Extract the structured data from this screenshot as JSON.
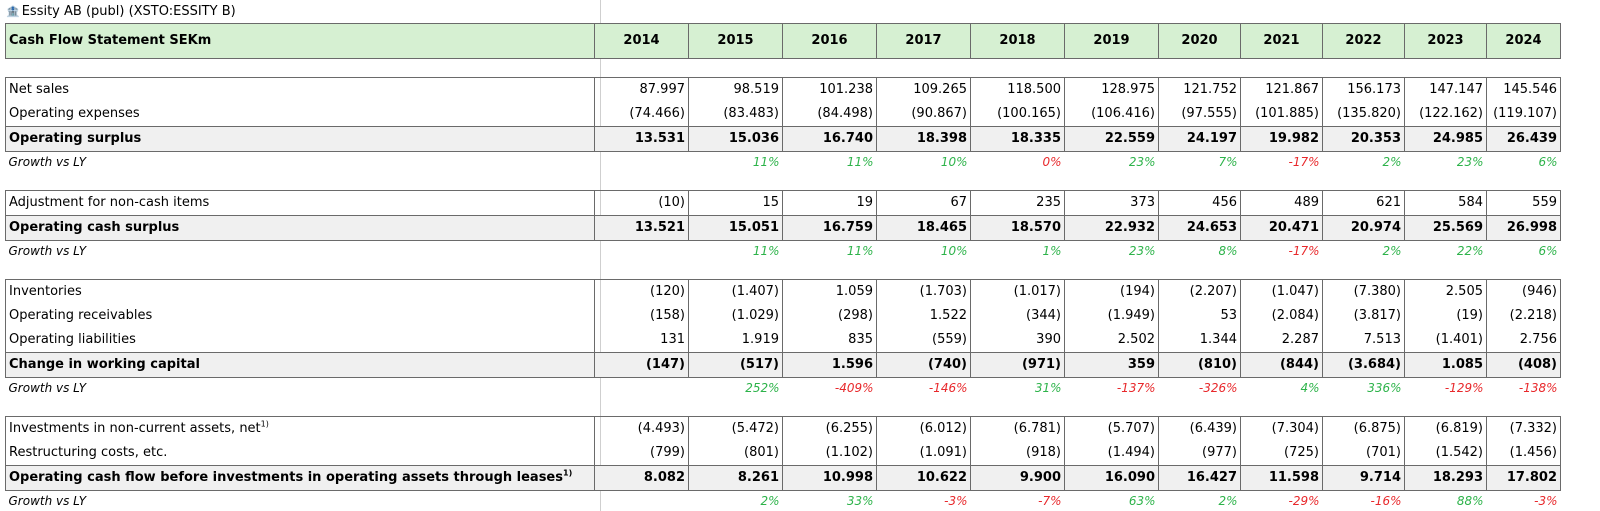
{
  "title": "Essity AB (publ) (XSTO:ESSITY B)",
  "header": {
    "label": "Cash Flow Statement SEKm",
    "years": [
      "2014",
      "2015",
      "2016",
      "2017",
      "2018",
      "2019",
      "2020",
      "2021",
      "2022",
      "2023",
      "2024"
    ]
  },
  "sections": [
    {
      "rows": [
        {
          "label": "Net sales",
          "type": "data",
          "values": [
            "87.997",
            "98.519",
            "101.238",
            "109.265",
            "118.500",
            "128.975",
            "121.752",
            "121.867",
            "156.173",
            "147.147",
            "145.546"
          ]
        },
        {
          "label": "Operating expenses",
          "type": "data",
          "values": [
            "(74.466)",
            "(83.483)",
            "(84.498)",
            "(90.867)",
            "(100.165)",
            "(106.416)",
            "(97.555)",
            "(101.885)",
            "(135.820)",
            "(122.162)",
            "(119.107)"
          ]
        },
        {
          "label": "Operating surplus",
          "type": "total",
          "values": [
            "13.531",
            "15.036",
            "16.740",
            "18.398",
            "18.335",
            "22.559",
            "24.197",
            "19.982",
            "20.353",
            "24.985",
            "26.439"
          ]
        }
      ],
      "growth": {
        "label": "Growth vs LY",
        "values": [
          "",
          "11%",
          "11%",
          "10%",
          "0%",
          "23%",
          "7%",
          "-17%",
          "2%",
          "23%",
          "6%"
        ],
        "colors": [
          "",
          "pos",
          "pos",
          "pos",
          "neg",
          "pos",
          "pos",
          "neg",
          "pos",
          "pos",
          "pos"
        ]
      }
    },
    {
      "rows": [
        {
          "label": "Adjustment for non-cash items",
          "type": "data",
          "values": [
            "(10)",
            "15",
            "19",
            "67",
            "235",
            "373",
            "456",
            "489",
            "621",
            "584",
            "559"
          ]
        },
        {
          "label": "Operating cash surplus",
          "type": "total",
          "values": [
            "13.521",
            "15.051",
            "16.759",
            "18.465",
            "18.570",
            "22.932",
            "24.653",
            "20.471",
            "20.974",
            "25.569",
            "26.998"
          ]
        }
      ],
      "growth": {
        "label": "Growth vs LY",
        "values": [
          "",
          "11%",
          "11%",
          "10%",
          "1%",
          "23%",
          "8%",
          "-17%",
          "2%",
          "22%",
          "6%"
        ],
        "colors": [
          "",
          "pos",
          "pos",
          "pos",
          "pos",
          "pos",
          "pos",
          "neg",
          "pos",
          "pos",
          "pos"
        ]
      }
    },
    {
      "rows": [
        {
          "label": " Inventories",
          "type": "data",
          "values": [
            "(120)",
            "(1.407)",
            "1.059",
            "(1.703)",
            "(1.017)",
            "(194)",
            "(2.207)",
            "(1.047)",
            "(7.380)",
            "2.505",
            "(946)"
          ]
        },
        {
          "label": "Operating receivables",
          "type": "data",
          "values": [
            "(158)",
            "(1.029)",
            "(298)",
            "1.522",
            "(344)",
            "(1.949)",
            "53",
            "(2.084)",
            "(3.817)",
            "(19)",
            "(2.218)"
          ]
        },
        {
          "label": "Operating liabilities",
          "type": "data",
          "values": [
            "131",
            "1.919",
            "835",
            "(559)",
            "390",
            "2.502",
            "1.344",
            "2.287",
            "7.513",
            "(1.401)",
            "2.756"
          ]
        },
        {
          "label": "Change in working capital",
          "type": "total",
          "values": [
            "(147)",
            "(517)",
            "1.596",
            "(740)",
            "(971)",
            "359",
            "(810)",
            "(844)",
            "(3.684)",
            "1.085",
            "(408)"
          ]
        }
      ],
      "growth": {
        "label": "Growth vs LY",
        "values": [
          "",
          "252%",
          "-409%",
          "-146%",
          "31%",
          "-137%",
          "-326%",
          "4%",
          "336%",
          "-129%",
          "-138%"
        ],
        "colors": [
          "",
          "pos",
          "neg",
          "neg",
          "pos",
          "neg",
          "neg",
          "pos",
          "pos",
          "neg",
          "neg"
        ]
      }
    },
    {
      "rows": [
        {
          "label": "Investments in non-current assets, net",
          "sup": "1)",
          "type": "data",
          "values": [
            "(4.493)",
            "(5.472)",
            "(6.255)",
            "(6.012)",
            "(6.781)",
            "(5.707)",
            "(6.439)",
            "(7.304)",
            "(6.875)",
            "(6.819)",
            "(7.332)"
          ]
        },
        {
          "label": "Restructuring costs, etc.",
          "type": "data",
          "values": [
            "(799)",
            "(801)",
            "(1.102)",
            "(1.091)",
            "(918)",
            "(1.494)",
            "(977)",
            "(725)",
            "(701)",
            "(1.542)",
            "(1.456)"
          ]
        },
        {
          "label": "Operating cash flow before investments in operating assets through leases",
          "sup": "1)",
          "type": "total",
          "values": [
            "8.082",
            "8.261",
            "10.998",
            "10.622",
            "9.900",
            "16.090",
            "16.427",
            "11.598",
            "9.714",
            "18.293",
            "17.802"
          ]
        }
      ],
      "growth": {
        "label": "Growth vs LY",
        "values": [
          "",
          "2%",
          "33%",
          "-3%",
          "-7%",
          "63%",
          "2%",
          "-29%",
          "-16%",
          "88%",
          "-3%"
        ],
        "colors": [
          "",
          "pos",
          "pos",
          "neg",
          "neg",
          "pos",
          "pos",
          "neg",
          "neg",
          "pos",
          "neg"
        ]
      }
    }
  ]
}
